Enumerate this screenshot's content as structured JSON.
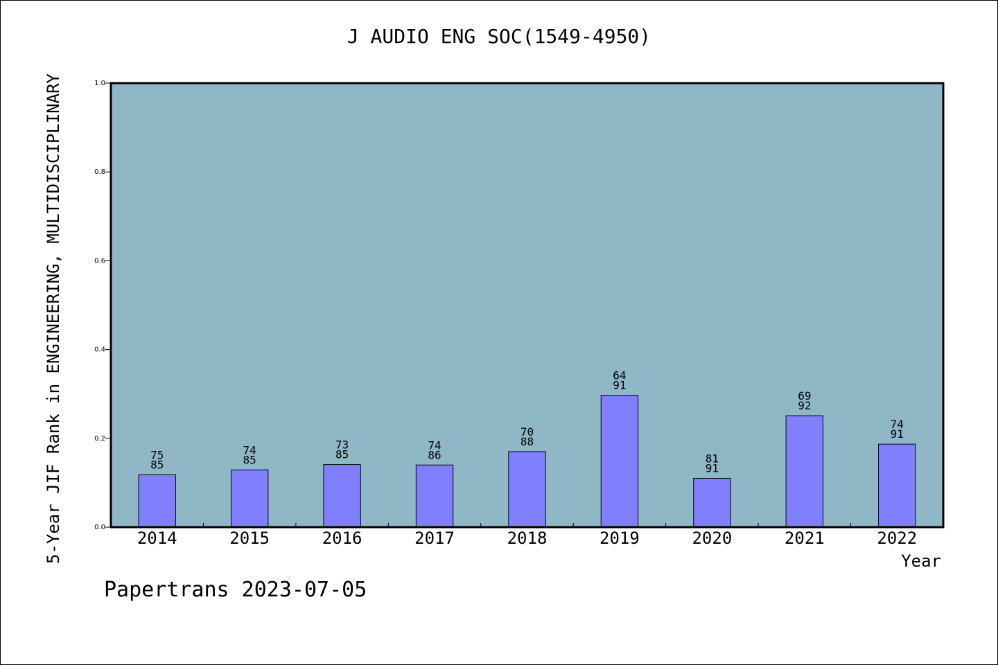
{
  "chart_data": {
    "type": "bar",
    "title": "J AUDIO ENG SOC(1549-4950)",
    "xlabel": "Year",
    "ylabel": "5-Year JIF Rank in ENGINEERING, MULTIDISCIPLINARY",
    "ylim": [
      0,
      1.0
    ],
    "yticks": [
      "0.0",
      "0.2",
      "0.4",
      "0.6",
      "0.8",
      "1.0"
    ],
    "categories": [
      "2014",
      "2015",
      "2016",
      "2017",
      "2018",
      "2019",
      "2020",
      "2021",
      "2022"
    ],
    "values": [
      0.118,
      0.129,
      0.141,
      0.14,
      0.17,
      0.297,
      0.11,
      0.251,
      0.187
    ],
    "labels_top": [
      "75",
      "74",
      "73",
      "74",
      "70",
      "64",
      "81",
      "69",
      "74"
    ],
    "labels_bottom": [
      "85",
      "85",
      "85",
      "86",
      "88",
      "91",
      "91",
      "92",
      "91"
    ],
    "colors": {
      "plot_bg": "#8fb7c6",
      "bar": "#8080ff",
      "axis": "#000000"
    },
    "grid": false
  },
  "footer": {
    "credit": "Papertrans 2023-07-05"
  }
}
